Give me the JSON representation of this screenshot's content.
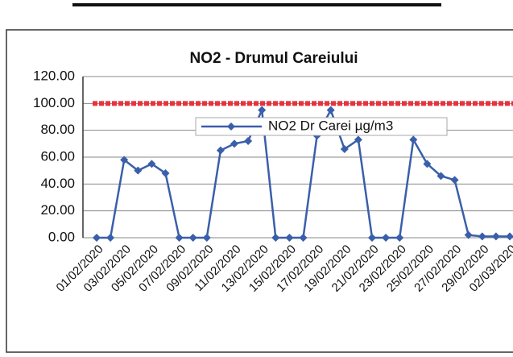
{
  "chart_data": {
    "type": "line",
    "title": "NO2 - Drumul Careiului",
    "categories": [
      "01/02/2020",
      null,
      "03/02/2020",
      null,
      "05/02/2020",
      null,
      "07/02/2020",
      null,
      "09/02/2020",
      null,
      "11/02/2020",
      null,
      "13/02/2020",
      null,
      "15/02/2020",
      null,
      "17/02/2020",
      null,
      "19/02/2020",
      null,
      "21/02/2020",
      null,
      "23/02/2020",
      null,
      "25/02/2020",
      null,
      "27/02/2020",
      null,
      "29/02/2020",
      null,
      "02/03/2020"
    ],
    "series": [
      {
        "name": "NO2 Dr Carei  µg/m3",
        "color": "#3a5faa",
        "values": [
          0,
          0,
          58,
          50,
          55,
          48,
          0,
          0,
          0,
          65,
          70,
          72,
          95,
          0,
          0,
          0,
          76,
          95,
          66,
          73,
          0,
          0,
          0,
          73,
          55,
          46,
          43,
          2,
          1,
          1,
          1
        ]
      }
    ],
    "limit_line": {
      "value": 100,
      "color": "#e8323c"
    },
    "ylim": [
      0,
      120
    ],
    "yticks": [
      {
        "value": 0,
        "label": "0.00"
      },
      {
        "value": 20,
        "label": "20.00"
      },
      {
        "value": 40,
        "label": "40.00"
      },
      {
        "value": 60,
        "label": "60.00"
      },
      {
        "value": 80,
        "label": "80.00"
      },
      {
        "value": 100,
        "label": "100.00"
      },
      {
        "value": 120,
        "label": "120.00"
      }
    ],
    "grid": true
  }
}
